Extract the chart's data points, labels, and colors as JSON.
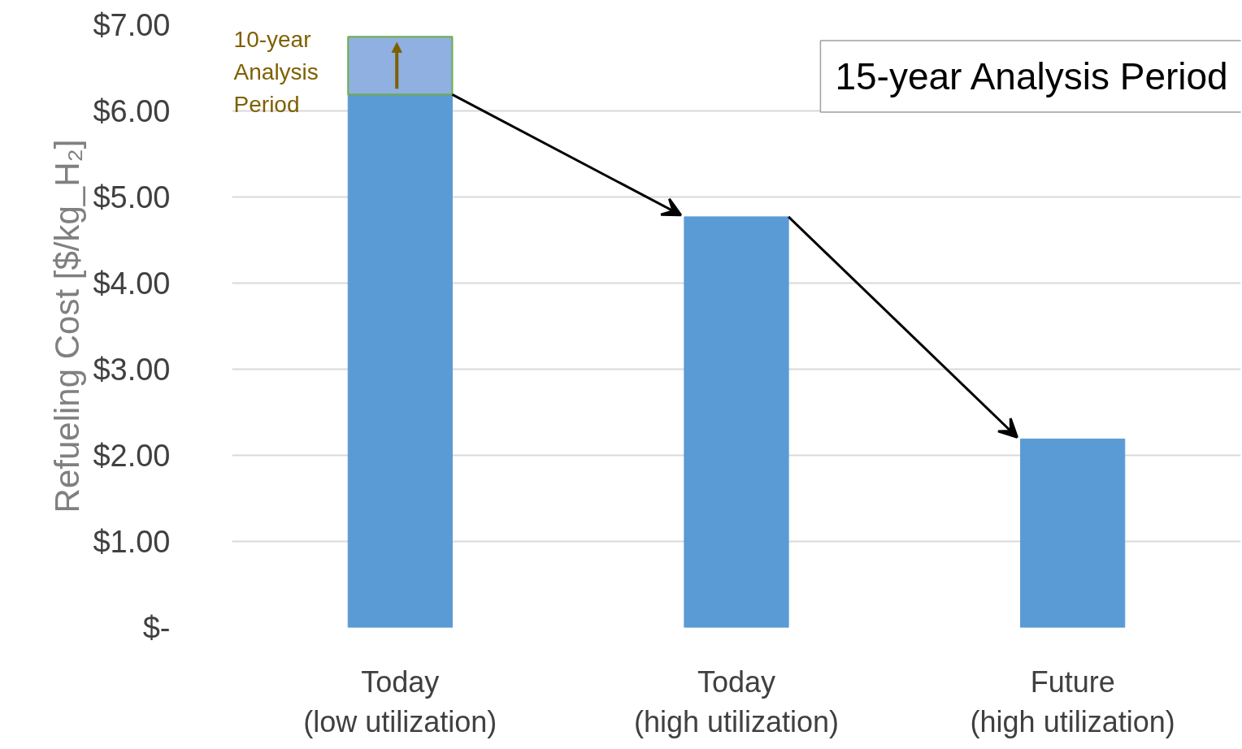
{
  "chart_data": {
    "type": "bar",
    "stacked": true,
    "categories": [
      "Today\n(low utilization)",
      "Today\n(high utilization)",
      "Future\n(high utilization)"
    ],
    "series": [
      {
        "color": "#5b9bd5",
        "values": [
          6.19,
          4.77,
          2.19
        ]
      },
      {
        "color": "#8fb0e0",
        "values": [
          0.67,
          null,
          null
        ]
      }
    ],
    "ylabel": "Refueling Cost [$/kg_H₂]",
    "ylim": [
      0,
      7
    ],
    "yticks": [
      {
        "value": 0,
        "label": "$-"
      },
      {
        "value": 1,
        "label": "$1.00"
      },
      {
        "value": 2,
        "label": "$2.00"
      },
      {
        "value": 3,
        "label": "$3.00"
      },
      {
        "value": 4,
        "label": "$4.00"
      },
      {
        "value": 5,
        "label": "$5.00"
      },
      {
        "value": 6,
        "label": "$6.00"
      },
      {
        "value": 7,
        "label": "$7.00"
      }
    ],
    "grid": "y",
    "annotations": [
      "10-year\nAnalysis\nPeriod",
      "15-year Analysis Period"
    ]
  }
}
